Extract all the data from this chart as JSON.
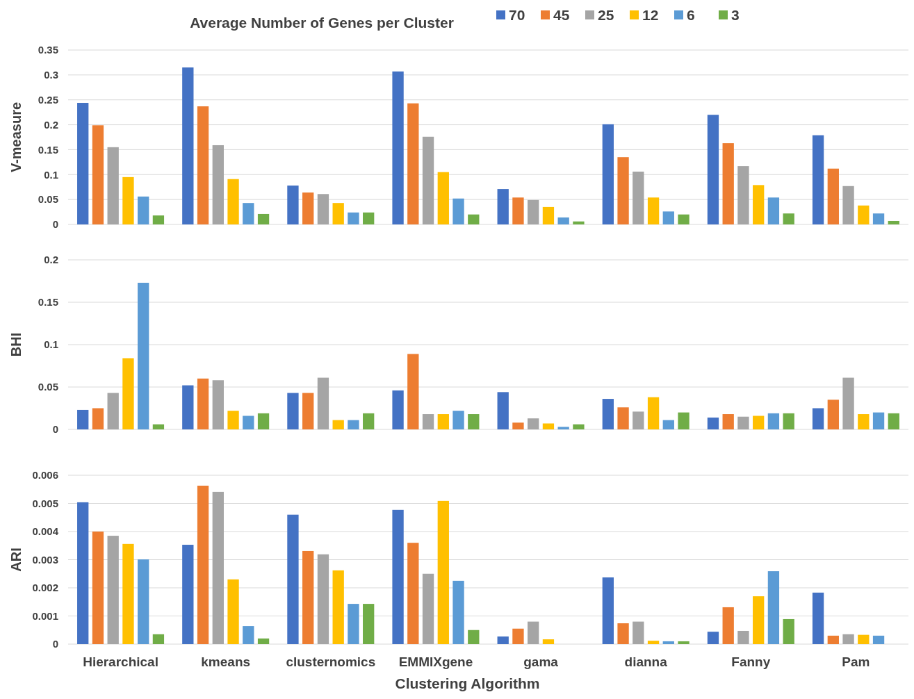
{
  "chart_data": [
    {
      "type": "bar",
      "legend_title": "Average Number of Genes per Cluster",
      "legend": "top",
      "ylabel": "V-measure",
      "grid": "y",
      "tick_labels": "y",
      "categories": [
        null,
        null,
        null,
        null,
        null,
        null,
        null,
        null
      ],
      "ylim": [
        0,
        0.35
      ],
      "yticks": [
        0,
        0.05,
        0.1,
        0.15,
        0.2,
        0.25,
        0.3,
        0.35
      ],
      "series": [
        {
          "name": "70",
          "color": "#4472c4",
          "values": [
            0.244,
            0.315,
            0.078,
            0.307,
            0.071,
            0.201,
            0.22,
            0.179
          ]
        },
        {
          "name": "45",
          "color": "#ed7d31",
          "values": [
            0.199,
            0.237,
            0.064,
            0.243,
            0.054,
            0.135,
            0.163,
            0.112
          ]
        },
        {
          "name": "25",
          "color": "#a5a5a5",
          "values": [
            0.155,
            0.159,
            0.061,
            0.176,
            0.049,
            0.106,
            0.117,
            0.077
          ]
        },
        {
          "name": "12",
          "color": "#ffc000",
          "values": [
            0.095,
            0.091,
            0.043,
            0.105,
            0.035,
            0.054,
            0.079,
            0.038
          ]
        },
        {
          "name": "6",
          "color": "#5b9bd5",
          "values": [
            0.056,
            0.043,
            0.024,
            0.052,
            0.014,
            0.026,
            0.054,
            0.022
          ]
        },
        {
          "name": "3",
          "color": "#70ad47",
          "values": [
            0.018,
            0.021,
            0.024,
            0.02,
            0.006,
            0.02,
            0.022,
            0.007
          ]
        }
      ]
    },
    {
      "type": "bar",
      "ylabel": "BHI",
      "grid": "y",
      "tick_labels": "y",
      "categories": [
        null,
        null,
        null,
        null,
        null,
        null,
        null,
        null
      ],
      "ylim": [
        0,
        0.2
      ],
      "yticks": [
        0,
        0.05,
        0.1,
        0.15,
        0.2
      ],
      "series": [
        {
          "color": "#4472c4",
          "values": [
            0.023,
            0.052,
            0.043,
            0.046,
            0.044,
            0.036,
            0.014,
            0.025
          ]
        },
        {
          "color": "#ed7d31",
          "values": [
            0.025,
            0.06,
            0.043,
            0.089,
            0.008,
            0.026,
            0.018,
            0.035
          ]
        },
        {
          "color": "#a5a5a5",
          "values": [
            0.043,
            0.058,
            0.061,
            0.018,
            0.013,
            0.021,
            0.015,
            0.061
          ]
        },
        {
          "color": "#ffc000",
          "values": [
            0.084,
            0.022,
            0.011,
            0.018,
            0.007,
            0.038,
            0.016,
            0.018
          ]
        },
        {
          "color": "#5b9bd5",
          "values": [
            0.173,
            0.016,
            0.011,
            0.022,
            0.003,
            0.011,
            0.019,
            0.02
          ]
        },
        {
          "color": "#70ad47",
          "values": [
            0.006,
            0.019,
            0.019,
            0.018,
            0.006,
            0.02,
            0.019,
            0.019
          ]
        }
      ]
    },
    {
      "type": "bar",
      "ylabel": "ARI",
      "xlabel": "Clustering Algorithm",
      "grid": "y",
      "categories": [
        "Hierarchical",
        "kmeans",
        "clusternomics",
        "EMMIXgene",
        "gama",
        "dianna",
        "Fanny",
        "Pam"
      ],
      "ylim": [
        0,
        0.006
      ],
      "yticks": [
        0,
        0.001,
        0.002,
        0.003,
        0.004,
        0.005,
        0.006
      ],
      "series": [
        {
          "color": "#4472c4",
          "values": [
            0.00504,
            0.00353,
            0.0046,
            0.00477,
            0.00027,
            0.00237,
            0.00044,
            0.00183
          ]
        },
        {
          "color": "#ed7d31",
          "values": [
            0.004,
            0.00563,
            0.00331,
            0.0036,
            0.00055,
            0.00074,
            0.00131,
            0.0003
          ]
        },
        {
          "color": "#a5a5a5",
          "values": [
            0.00385,
            0.00541,
            0.00319,
            0.0025,
            0.0008,
            0.0008,
            0.00047,
            0.00035
          ]
        },
        {
          "color": "#ffc000",
          "values": [
            0.00356,
            0.0023,
            0.00262,
            0.00509,
            0.00017,
            0.00012,
            0.0017,
            0.00033
          ]
        },
        {
          "color": "#5b9bd5",
          "values": [
            0.00301,
            0.00064,
            0.00143,
            0.00225,
            0,
            0.0001,
            0.00259,
            0.0003
          ]
        },
        {
          "color": "#70ad47",
          "values": [
            0.00035,
            0.0002,
            0.00143,
            0.0005,
            0,
            0.0001,
            0.00089,
            0
          ]
        }
      ]
    }
  ]
}
